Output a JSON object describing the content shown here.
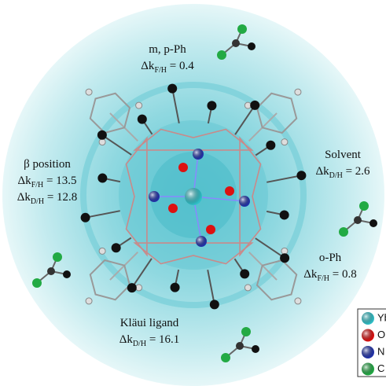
{
  "labels": [
    {
      "title": "m, p-Ph",
      "lines": [
        {
          "symbol": "Δk",
          "sub": "F/H",
          "rest": " = 0.4"
        }
      ]
    },
    {
      "title": "β position",
      "lines": [
        {
          "symbol": "Δk",
          "sub": "F/H",
          "rest": " = 13.5"
        },
        {
          "symbol": "Δk",
          "sub": "D/H",
          "rest": " = 12.8"
        }
      ]
    },
    {
      "title": "Solvent",
      "lines": [
        {
          "symbol": "Δk",
          "sub": "D/H",
          "rest": " = 2.6"
        }
      ]
    },
    {
      "title": "o-Ph",
      "lines": [
        {
          "symbol": "Δk",
          "sub": "F/H",
          "rest": " = 0.8"
        }
      ]
    },
    {
      "title": "Kläui ligand",
      "lines": [
        {
          "symbol": "Δk",
          "sub": "D/H",
          "rest": " = 16.1"
        }
      ]
    }
  ],
  "legend": [
    {
      "label": "Yb"
    },
    {
      "label": "O"
    },
    {
      "label": "N"
    },
    {
      "label": "C"
    }
  ]
}
